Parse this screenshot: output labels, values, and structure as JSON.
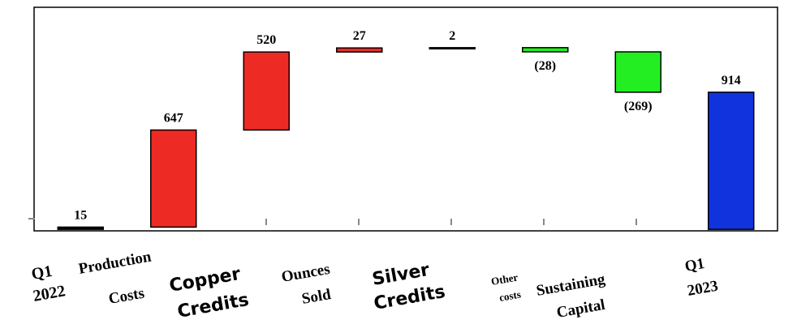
{
  "chart_data": {
    "type": "waterfall",
    "categories": [
      [
        "Q1",
        "2022"
      ],
      [
        "Production",
        "Costs"
      ],
      [
        "Copper",
        "Credits"
      ],
      [
        "Ounces",
        "Sold"
      ],
      [
        "Silver",
        "Credits"
      ],
      [
        "Other",
        "costs"
      ],
      [
        "Sustaining",
        "Capital"
      ],
      [
        "Q1",
        "2023"
      ]
    ],
    "values": [
      15,
      647,
      520,
      27,
      2,
      -28,
      -269,
      914
    ],
    "value_labels": [
      "15",
      "647",
      "520",
      "27",
      "2",
      "(28)",
      "(269)",
      "914"
    ],
    "totals": [
      true,
      false,
      false,
      false,
      false,
      false,
      false,
      true
    ],
    "colors": [
      "#000000",
      "#ee2a24",
      "#ee2a24",
      "#ee2a24",
      "#ee2a24",
      "#22ee22",
      "#22ee22",
      "#1133dd"
    ],
    "ylim": [
      -10,
      1480
    ]
  }
}
